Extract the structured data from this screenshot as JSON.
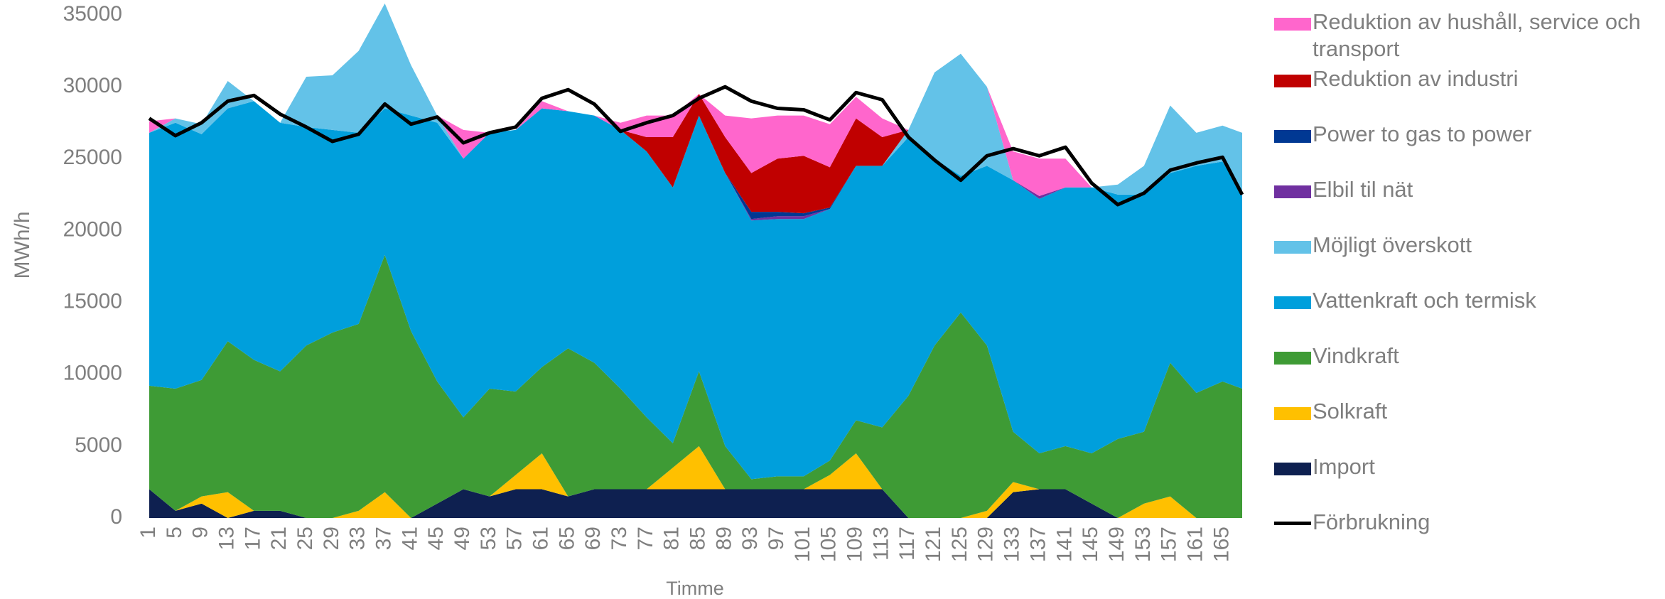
{
  "chart_data": {
    "type": "stacked_area",
    "y_label": "MWh/h",
    "x_label": "Timme",
    "xlim": [
      1,
      168
    ],
    "ylim": [
      0,
      35000
    ],
    "yticks": [
      0,
      5000,
      10000,
      15000,
      20000,
      25000,
      30000,
      35000
    ],
    "xticks": [
      1,
      5,
      9,
      13,
      17,
      21,
      25,
      29,
      33,
      37,
      41,
      45,
      49,
      53,
      57,
      61,
      65,
      69,
      73,
      77,
      81,
      85,
      89,
      93,
      97,
      101,
      105,
      109,
      113,
      117,
      121,
      125,
      129,
      133,
      137,
      141,
      145,
      149,
      153,
      157,
      161,
      165
    ],
    "x": [
      1,
      5,
      9,
      13,
      17,
      21,
      25,
      29,
      33,
      37,
      41,
      45,
      49,
      53,
      57,
      61,
      65,
      69,
      73,
      77,
      81,
      85,
      89,
      93,
      97,
      101,
      105,
      109,
      113,
      117,
      121,
      125,
      129,
      133,
      137,
      141,
      145,
      149,
      153,
      157,
      161,
      165,
      168
    ],
    "series": [
      {
        "name": "Import",
        "color": "#0e2050",
        "values": [
          2000,
          500,
          1000,
          0,
          500,
          500,
          0,
          0,
          0,
          0,
          0,
          1000,
          2000,
          1500,
          2000,
          2000,
          1500,
          2000,
          2000,
          2000,
          2000,
          2000,
          2000,
          2000,
          2000,
          2000,
          2000,
          2000,
          2000,
          0,
          0,
          0,
          0,
          1800,
          2000,
          2000,
          1000,
          0,
          0,
          0,
          0,
          0,
          0
        ]
      },
      {
        "name": "Solkraft",
        "color": "#ffc000",
        "values": [
          0,
          0,
          500,
          1800,
          0,
          0,
          0,
          0,
          500,
          1800,
          0,
          0,
          0,
          0,
          1000,
          2500,
          0,
          0,
          0,
          0,
          1500,
          3000,
          0,
          0,
          0,
          0,
          1000,
          2500,
          0,
          0,
          0,
          0,
          500,
          700,
          0,
          0,
          0,
          0,
          1000,
          1500,
          0,
          0,
          0
        ]
      },
      {
        "name": "Vindkraft",
        "color": "#3e9b35",
        "values": [
          7200,
          8500,
          8100,
          10500,
          10500,
          9700,
          12000,
          12900,
          13000,
          16500,
          13000,
          8500,
          5000,
          7500,
          5800,
          6000,
          10300,
          8800,
          7000,
          5000,
          1700,
          5200,
          3000,
          700,
          900,
          900,
          1000,
          2300,
          4300,
          8500,
          12000,
          14300,
          11500,
          3500,
          2500,
          3000,
          3500,
          5500,
          5000,
          9300,
          8700,
          9500,
          9000
        ]
      },
      {
        "name": "Vattenkraft och termisk",
        "color": "#009fdc",
        "values": [
          17600,
          18500,
          17100,
          16200,
          18000,
          17300,
          15200,
          14100,
          13300,
          10200,
          15000,
          18000,
          18000,
          17800,
          18200,
          18000,
          16500,
          17200,
          18000,
          18500,
          17800,
          17800,
          19000,
          18000,
          17900,
          17900,
          17500,
          17700,
          18200,
          18000,
          13000,
          9500,
          12500,
          17500,
          17700,
          18000,
          18500,
          17000,
          16500,
          13200,
          15800,
          15300,
          13500
        ]
      },
      {
        "name": "Möjligt överskott",
        "color": "#63c2e8",
        "values": [
          0,
          300,
          700,
          1900,
          0,
          0,
          3500,
          3800,
          5700,
          7300,
          3500,
          500,
          0,
          0,
          0,
          0,
          0,
          0,
          0,
          0,
          0,
          0,
          0,
          0,
          0,
          0,
          0,
          0,
          0,
          500,
          6000,
          8500,
          5500,
          0,
          0,
          0,
          0,
          700,
          2000,
          4700,
          2300,
          2500,
          4300
        ]
      },
      {
        "name": "Elbil til nät",
        "color": "#7030a0",
        "values": [
          0,
          0,
          0,
          0,
          0,
          0,
          0,
          0,
          0,
          0,
          0,
          0,
          0,
          0,
          0,
          0,
          0,
          0,
          0,
          0,
          0,
          0,
          0,
          100,
          200,
          200,
          0,
          0,
          0,
          0,
          0,
          0,
          0,
          0,
          200,
          0,
          0,
          0,
          0,
          0,
          0,
          0,
          0
        ]
      },
      {
        "name": "Power to gas to power",
        "color": "#003893",
        "values": [
          0,
          0,
          0,
          0,
          0,
          0,
          0,
          0,
          0,
          0,
          0,
          0,
          0,
          0,
          0,
          0,
          0,
          0,
          0,
          0,
          0,
          0,
          0,
          500,
          300,
          200,
          100,
          0,
          0,
          0,
          0,
          0,
          0,
          0,
          0,
          0,
          0,
          0,
          0,
          0,
          0,
          0,
          0
        ]
      },
      {
        "name": "Reduktion av industri",
        "color": "#c00000",
        "values": [
          0,
          0,
          0,
          0,
          0,
          0,
          0,
          0,
          0,
          0,
          0,
          0,
          0,
          0,
          0,
          0,
          0,
          0,
          0,
          1000,
          3500,
          1500,
          2500,
          2700,
          3700,
          4000,
          2800,
          3300,
          2000,
          0,
          0,
          0,
          0,
          0,
          0,
          0,
          0,
          0,
          0,
          0,
          0,
          0,
          0
        ]
      },
      {
        "name": "Reduktion av hushåll, service och transport",
        "color": "#ff66cc",
        "values": [
          800,
          0,
          0,
          0,
          0,
          0,
          0,
          0,
          0,
          0,
          0,
          0,
          2000,
          0,
          0,
          500,
          0,
          0,
          500,
          1500,
          1500,
          0,
          1500,
          3800,
          3000,
          2800,
          3000,
          1500,
          1300,
          0,
          0,
          0,
          0,
          2000,
          2600,
          2000,
          0,
          0,
          0,
          0,
          0,
          0,
          0
        ]
      }
    ],
    "line": {
      "name": "Förbrukning",
      "color": "#000000",
      "values": [
        27800,
        26600,
        27500,
        29000,
        29400,
        28100,
        27200,
        26200,
        26700,
        28800,
        27400,
        27900,
        26100,
        26800,
        27200,
        29200,
        29800,
        28800,
        26900,
        27500,
        28000,
        29200,
        30000,
        29000,
        28500,
        28400,
        27700,
        29600,
        29100,
        26500,
        24900,
        23500,
        25200,
        25700,
        25200,
        25800,
        23300,
        21800,
        22600,
        24200,
        24700,
        25100,
        22500
      ]
    }
  }
}
